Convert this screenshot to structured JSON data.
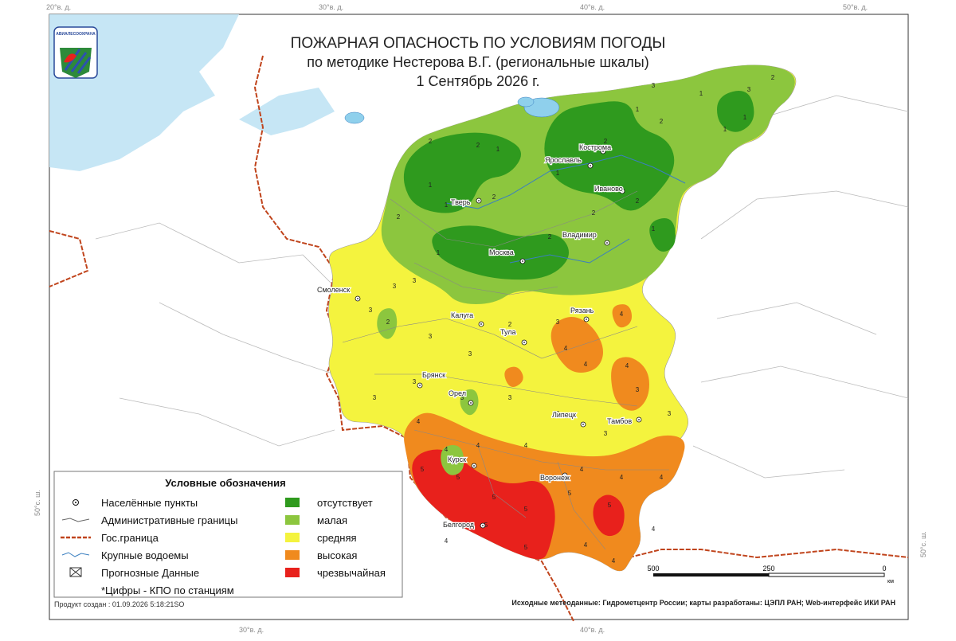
{
  "header": {
    "title": "ПОЖАРНАЯ ОПАСНОСТЬ ПО УСЛОВИЯМ ПОГОДЫ",
    "subtitle": "по методике Нестерова В.Г. (региональные шкалы)",
    "date": "1 Сентябрь 2026 г."
  },
  "logo": "АВИАЛЕСООХРАНА",
  "graticule": {
    "top": [
      "20°в. д.",
      "30°в. д.",
      "40°в. д.",
      "50°в. д."
    ],
    "bottom": [
      "30°в. д.",
      "40°в. д."
    ],
    "left": "50°с. ш.",
    "right": "50°с. ш."
  },
  "cities": [
    "Кострома",
    "Ярославль",
    "Иваново",
    "Тверь",
    "Владимир",
    "Москва",
    "Смоленск",
    "Калуга",
    "Рязань",
    "Тула",
    "Брянск",
    "Орел",
    "Липецк",
    "Тамбов",
    "Курск",
    "Воронеж",
    "Белгород"
  ],
  "station_values": [
    2,
    2,
    1,
    1,
    2,
    1,
    2,
    1,
    2,
    1,
    2,
    1,
    3,
    2,
    1,
    1,
    3,
    2,
    1,
    2,
    2,
    1,
    3,
    3,
    3,
    2,
    3,
    3,
    2,
    3,
    4,
    4,
    4,
    4,
    3,
    3,
    3,
    3,
    3,
    3,
    3,
    3,
    4,
    4,
    4,
    4,
    4,
    4,
    5,
    5,
    5,
    5,
    5,
    5,
    5,
    4,
    4,
    4,
    5,
    4,
    4
  ],
  "legend": {
    "title": "Условные обозначения",
    "symbols": [
      "Населённые пункты",
      "Административные границы",
      "Гос.граница",
      "Крупные водоемы",
      "Прогнозные Данные",
      "*Цифры - КПО по станциям"
    ],
    "classes": [
      {
        "label": "отсутствует",
        "color": "#2f9a1e"
      },
      {
        "label": "малая",
        "color": "#8cc63e"
      },
      {
        "label": "средняя",
        "color": "#f4f33e"
      },
      {
        "label": "высокая",
        "color": "#f08a1e"
      },
      {
        "label": "чрезвычайная",
        "color": "#e8211c"
      }
    ]
  },
  "scale": {
    "labels": [
      "500",
      "250",
      "0"
    ],
    "unit": "км"
  },
  "credits": "Исходные метеоданные: Гидрометцентр России; карты разработаны: ЦЭПЛ РАН; Web-интерфейс ИКИ РАН",
  "created": "Продукт создан : 01.09.2026 5:18:21SO"
}
